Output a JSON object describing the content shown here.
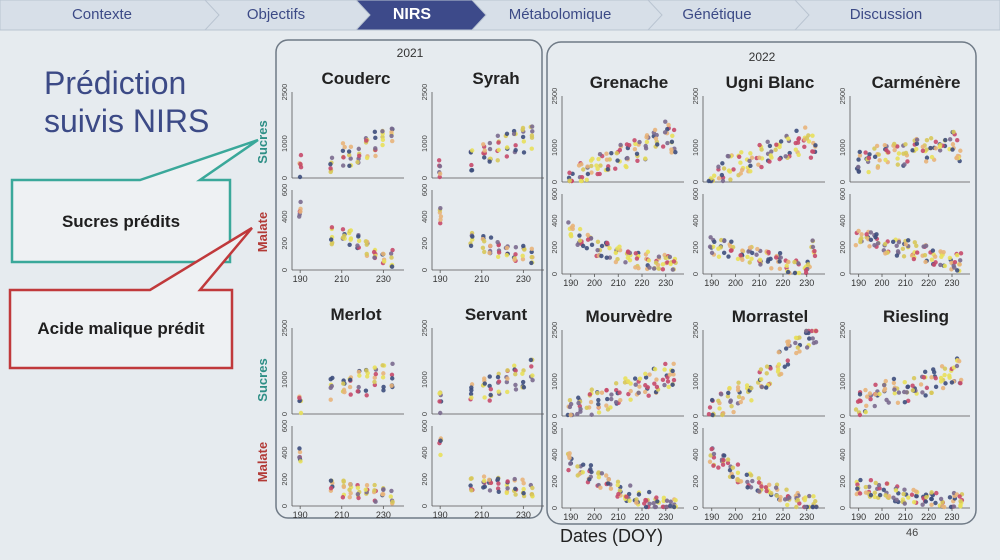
{
  "nav": {
    "steps": [
      "Contexte",
      "Objectifs",
      "NIRS",
      "Métabolomique",
      "Génétique",
      "Discussion"
    ],
    "active_index": 2,
    "active_color": "#3d4a8a",
    "inactive_color": "#d7dfe8"
  },
  "slide_title_line1": "Prédiction",
  "slide_title_line2": "suivis NIRS",
  "callouts": {
    "sugars": {
      "label": "Sucres prédits",
      "color": "#3aa89a"
    },
    "malic": {
      "label": "Acide malique prédit",
      "color": "#c0393b"
    }
  },
  "page_number": "46",
  "chart_data": {
    "type": "scatter",
    "xlabel": "Dates (DOY)",
    "row_labels": {
      "sugars": "Sucres",
      "malate": "Malate"
    },
    "row_label_colors": {
      "sugars": "#2e8f86",
      "malate": "#b23a36"
    },
    "sugars_ylim": [
      0,
      2500
    ],
    "sugars_ticks": [
      "0",
      "1000",
      "2500"
    ],
    "malate_ylim": [
      0,
      600
    ],
    "malate_ticks": [
      "0",
      "200",
      "400",
      "600"
    ],
    "point_colors": [
      "#e8e05a",
      "#d7c85a",
      "#3d4e7c",
      "#7a6a8e",
      "#c74a6a",
      "#e8b47a"
    ],
    "groups": [
      {
        "year": "2021",
        "xlim": [
          188,
          238
        ],
        "xticks": [
          "190",
          "210",
          "230"
        ],
        "varieties": [
          {
            "name": "Couderc",
            "sugars": [
              [
                190,
                300
              ],
              [
                205,
                450
              ],
              [
                211,
                650
              ],
              [
                214,
                700
              ],
              [
                218,
                800
              ],
              [
                222,
                900
              ],
              [
                226,
                1000
              ],
              [
                230,
                1050
              ],
              [
                234,
                1100
              ]
            ],
            "malate": [
              [
                190,
                460
              ],
              [
                205,
                260
              ],
              [
                211,
                250
              ],
              [
                214,
                240
              ],
              [
                218,
                200
              ],
              [
                222,
                160
              ],
              [
                226,
                130
              ],
              [
                230,
                100
              ],
              [
                234,
                90
              ]
            ]
          },
          {
            "name": "Syrah",
            "sugars": [
              [
                190,
                250
              ],
              [
                205,
                450
              ],
              [
                211,
                700
              ],
              [
                214,
                750
              ],
              [
                218,
                850
              ],
              [
                222,
                950
              ],
              [
                226,
                1050
              ],
              [
                230,
                1100
              ],
              [
                234,
                1150
              ]
            ],
            "malate": [
              [
                190,
                400
              ],
              [
                205,
                240
              ],
              [
                211,
                200
              ],
              [
                214,
                180
              ],
              [
                218,
                160
              ],
              [
                222,
                140
              ],
              [
                226,
                130
              ],
              [
                230,
                120
              ],
              [
                234,
                110
              ]
            ]
          },
          {
            "name": "Merlot",
            "sugars": [
              [
                190,
                300
              ],
              [
                205,
                700
              ],
              [
                211,
                800
              ],
              [
                214,
                850
              ],
              [
                218,
                900
              ],
              [
                222,
                900
              ],
              [
                226,
                1000
              ],
              [
                230,
                1050
              ],
              [
                234,
                1100
              ]
            ],
            "malate": [
              [
                190,
                380
              ],
              [
                205,
                140
              ],
              [
                211,
                130
              ],
              [
                214,
                120
              ],
              [
                218,
                110
              ],
              [
                222,
                100
              ],
              [
                226,
                90
              ],
              [
                230,
                80
              ],
              [
                234,
                80
              ]
            ]
          },
          {
            "name": "Servant",
            "sugars": [
              [
                190,
                300
              ],
              [
                205,
                600
              ],
              [
                211,
                700
              ],
              [
                214,
                750
              ],
              [
                218,
                850
              ],
              [
                222,
                950
              ],
              [
                226,
                1050
              ],
              [
                230,
                1100
              ],
              [
                234,
                1200
              ]
            ],
            "malate": [
              [
                190,
                450
              ],
              [
                205,
                180
              ],
              [
                211,
                170
              ],
              [
                214,
                170
              ],
              [
                218,
                160
              ],
              [
                222,
                160
              ],
              [
                226,
                150
              ],
              [
                230,
                140
              ],
              [
                234,
                130
              ]
            ]
          }
        ]
      },
      {
        "year": "2022",
        "xlim": [
          188,
          236
        ],
        "xticks": [
          "190",
          "200",
          "210",
          "220",
          "230"
        ],
        "varieties": [
          {
            "name": "Grenache",
            "sugars": [
              [
                190,
                100
              ],
              [
                194,
                250
              ],
              [
                198,
                400
              ],
              [
                202,
                500
              ],
              [
                206,
                600
              ],
              [
                210,
                700
              ],
              [
                214,
                800
              ],
              [
                218,
                900
              ],
              [
                222,
                1000
              ],
              [
                226,
                1200
              ],
              [
                230,
                1400
              ],
              [
                233,
                1200
              ]
            ],
            "malate": [
              [
                190,
                320
              ],
              [
                194,
                270
              ],
              [
                198,
                240
              ],
              [
                202,
                200
              ],
              [
                206,
                180
              ],
              [
                210,
                150
              ],
              [
                214,
                130
              ],
              [
                218,
                110
              ],
              [
                222,
                100
              ],
              [
                226,
                90
              ],
              [
                230,
                80
              ],
              [
                233,
                100
              ]
            ]
          },
          {
            "name": "Ugni Blanc",
            "sugars": [
              [
                190,
                100
              ],
              [
                194,
                250
              ],
              [
                198,
                400
              ],
              [
                202,
                550
              ],
              [
                206,
                650
              ],
              [
                210,
                750
              ],
              [
                214,
                850
              ],
              [
                218,
                950
              ],
              [
                222,
                1050
              ],
              [
                226,
                1150
              ],
              [
                230,
                1250
              ],
              [
                233,
                1000
              ]
            ],
            "malate": [
              [
                190,
                210
              ],
              [
                194,
                190
              ],
              [
                198,
                180
              ],
              [
                202,
                170
              ],
              [
                206,
                150
              ],
              [
                210,
                130
              ],
              [
                214,
                110
              ],
              [
                218,
                90
              ],
              [
                222,
                60
              ],
              [
                226,
                40
              ],
              [
                230,
                30
              ],
              [
                233,
                200
              ]
            ]
          },
          {
            "name": "Carménère",
            "sugars": [
              [
                190,
                600
              ],
              [
                194,
                650
              ],
              [
                198,
                700
              ],
              [
                202,
                750
              ],
              [
                206,
                800
              ],
              [
                210,
                850
              ],
              [
                214,
                900
              ],
              [
                218,
                950
              ],
              [
                222,
                1000
              ],
              [
                226,
                1050
              ],
              [
                230,
                1100
              ],
              [
                233,
                900
              ]
            ],
            "malate": [
              [
                190,
                280
              ],
              [
                194,
                260
              ],
              [
                198,
                240
              ],
              [
                202,
                220
              ],
              [
                206,
                200
              ],
              [
                210,
                190
              ],
              [
                214,
                170
              ],
              [
                218,
                150
              ],
              [
                222,
                130
              ],
              [
                226,
                110
              ],
              [
                230,
                100
              ],
              [
                233,
                90
              ]
            ]
          },
          {
            "name": "Mourvèdre",
            "sugars": [
              [
                190,
                200
              ],
              [
                194,
                300
              ],
              [
                198,
                400
              ],
              [
                202,
                450
              ],
              [
                206,
                550
              ],
              [
                210,
                650
              ],
              [
                214,
                750
              ],
              [
                218,
                850
              ],
              [
                222,
                950
              ],
              [
                226,
                1050
              ],
              [
                230,
                1150
              ],
              [
                233,
                1200
              ]
            ],
            "malate": [
              [
                190,
                350
              ],
              [
                194,
                300
              ],
              [
                198,
                260
              ],
              [
                202,
                220
              ],
              [
                206,
                180
              ],
              [
                210,
                150
              ],
              [
                214,
                120
              ],
              [
                218,
                90
              ],
              [
                222,
                60
              ],
              [
                226,
                40
              ],
              [
                230,
                20
              ],
              [
                233,
                10
              ]
            ]
          },
          {
            "name": "Morrastel",
            "sugars": [
              [
                190,
                200
              ],
              [
                194,
                300
              ],
              [
                198,
                450
              ],
              [
                202,
                600
              ],
              [
                206,
                800
              ],
              [
                210,
                1000
              ],
              [
                214,
                1200
              ],
              [
                218,
                1500
              ],
              [
                222,
                1800
              ],
              [
                226,
                2100
              ],
              [
                230,
                2300
              ],
              [
                233,
                2500
              ]
            ],
            "malate": [
              [
                190,
                380
              ],
              [
                194,
                340
              ],
              [
                198,
                300
              ],
              [
                202,
                260
              ],
              [
                206,
                220
              ],
              [
                210,
                180
              ],
              [
                214,
                140
              ],
              [
                218,
                110
              ],
              [
                222,
                80
              ],
              [
                226,
                50
              ],
              [
                230,
                30
              ],
              [
                233,
                20
              ]
            ]
          },
          {
            "name": "Riesling",
            "sugars": [
              [
                190,
                350
              ],
              [
                194,
                450
              ],
              [
                198,
                550
              ],
              [
                202,
                650
              ],
              [
                206,
                700
              ],
              [
                210,
                750
              ],
              [
                214,
                850
              ],
              [
                218,
                950
              ],
              [
                222,
                1050
              ],
              [
                226,
                1150
              ],
              [
                230,
                1250
              ],
              [
                233,
                1300
              ]
            ],
            "malate": [
              [
                190,
                160
              ],
              [
                194,
                150
              ],
              [
                198,
                140
              ],
              [
                202,
                120
              ],
              [
                206,
                110
              ],
              [
                210,
                100
              ],
              [
                214,
                90
              ],
              [
                218,
                80
              ],
              [
                222,
                70
              ],
              [
                226,
                60
              ],
              [
                230,
                50
              ],
              [
                233,
                40
              ]
            ]
          }
        ]
      }
    ]
  }
}
